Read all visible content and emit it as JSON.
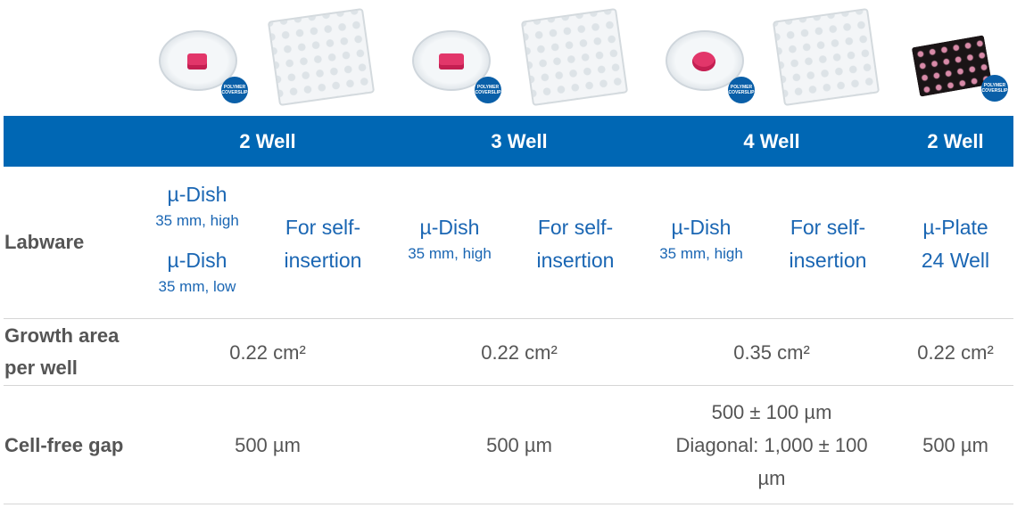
{
  "images": [
    {
      "name": "mu-dish-2-well",
      "badge": "POLYMER COVERSLIP"
    },
    {
      "name": "self-insertion-2-well"
    },
    {
      "name": "mu-dish-3-well",
      "badge": "POLYMER COVERSLIP"
    },
    {
      "name": "self-insertion-3-well"
    },
    {
      "name": "mu-dish-4-well",
      "badge": "POLYMER COVERSLIP"
    },
    {
      "name": "self-insertion-4-well"
    },
    {
      "name": "mu-plate-24-well",
      "badge": "POLYMER COVERSLIP"
    }
  ],
  "colors": {
    "header_bg": "#0067b4",
    "link": "#1a66b3",
    "text": "#555555"
  },
  "header": [
    "2 Well",
    "3 Well",
    "4 Well",
    "2 Well"
  ],
  "rows": {
    "labware": {
      "label": "Labware",
      "cells": [
        {
          "items": [
            {
              "title": "µ-Dish",
              "sub": "35 mm, high"
            },
            {
              "title": "µ-Dish",
              "sub": "35 mm, low"
            }
          ]
        },
        {
          "line1": "For self-",
          "line2": "insertion"
        },
        {
          "items": [
            {
              "title": "µ-Dish",
              "sub": "35 mm, high"
            }
          ]
        },
        {
          "line1": "For self-",
          "line2": "insertion"
        },
        {
          "items": [
            {
              "title": "µ-Dish",
              "sub": "35 mm, high"
            }
          ]
        },
        {
          "line1": "For self-",
          "line2": "insertion"
        },
        {
          "line1": "µ-Plate",
          "line2": "24 Well"
        }
      ]
    },
    "growth": {
      "label1": "Growth area",
      "label2": "per well",
      "values": [
        "0.22 cm²",
        "0.22 cm²",
        "0.35 cm²",
        "0.22 cm²"
      ]
    },
    "gap": {
      "label": "Cell-free gap",
      "values": [
        "500 µm",
        "500 µm",
        [
          "500 ± 100 µm",
          "Diagonal: 1,000 ± 100",
          "µm"
        ],
        "500 µm"
      ]
    }
  }
}
